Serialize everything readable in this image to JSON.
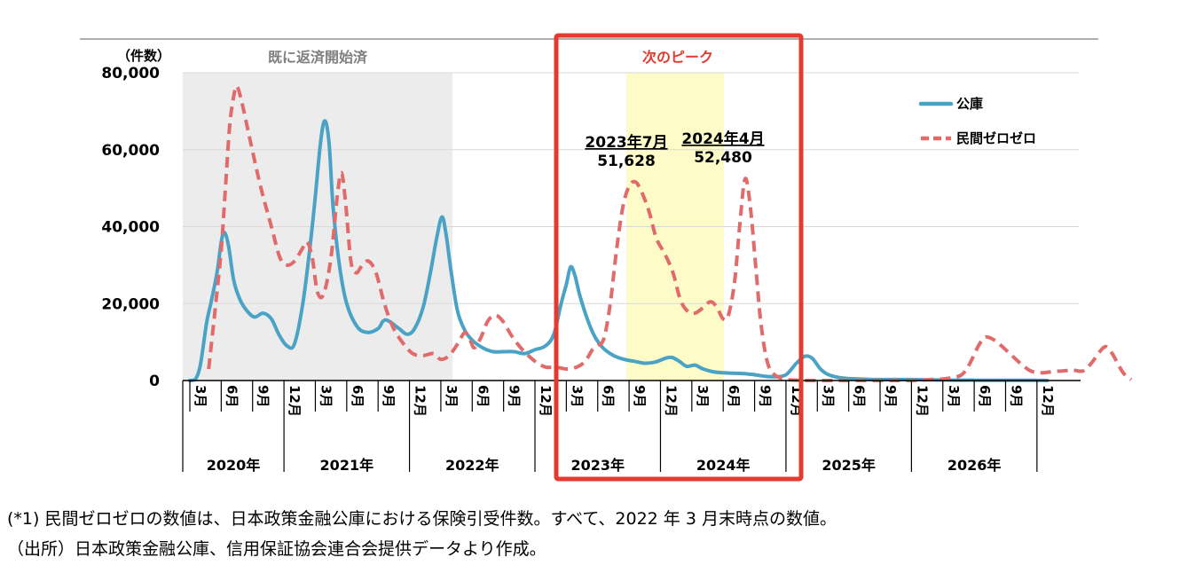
{
  "chart_data": {
    "type": "line",
    "y_unit_label": "（件数）",
    "ylim": [
      0,
      80000
    ],
    "y_ticks": [
      "0",
      "20,000",
      "40,000",
      "60,000",
      "80,000"
    ],
    "month_ticks": [
      "3月",
      "6月",
      "9月",
      "12月",
      "3月",
      "6月",
      "9月",
      "12月",
      "3月",
      "6月",
      "9月",
      "12月",
      "3月",
      "6月",
      "9月",
      "12月",
      "3月",
      "6月",
      "9月",
      "12月",
      "3月",
      "6月",
      "9月",
      "12月",
      "3月",
      "6月",
      "9月",
      "12月"
    ],
    "years": [
      "2020年",
      "2021年",
      "2022年",
      "2023年",
      "2024年",
      "2025年",
      "2026年"
    ],
    "legend_position": "top-right",
    "series": [
      {
        "name": "公庫",
        "color": "#4aa3c4",
        "style": "solid",
        "points": [
          [
            0,
            0
          ],
          [
            0.5,
            200
          ],
          [
            1,
            4000
          ],
          [
            1.6,
            15000
          ],
          [
            2,
            20000
          ],
          [
            2.6,
            28000
          ],
          [
            3,
            36000
          ],
          [
            3.3,
            38500
          ],
          [
            3.7,
            35000
          ],
          [
            4.2,
            26000
          ],
          [
            4.8,
            21000
          ],
          [
            5.5,
            18000
          ],
          [
            6.2,
            16500
          ],
          [
            7,
            17500
          ],
          [
            7.8,
            16000
          ],
          [
            8.5,
            12000
          ],
          [
            9.3,
            9000
          ],
          [
            10,
            9500
          ],
          [
            10.8,
            20000
          ],
          [
            11.5,
            35000
          ],
          [
            12,
            48000
          ],
          [
            12.5,
            62000
          ],
          [
            12.9,
            67500
          ],
          [
            13.3,
            62000
          ],
          [
            13.7,
            45000
          ],
          [
            14.3,
            30000
          ],
          [
            15,
            20000
          ],
          [
            16,
            14000
          ],
          [
            17,
            12500
          ],
          [
            18,
            13500
          ],
          [
            18.5,
            15500
          ],
          [
            19,
            15500
          ],
          [
            20,
            13500
          ],
          [
            20.8,
            12000
          ],
          [
            21.5,
            13500
          ],
          [
            22.3,
            19000
          ],
          [
            23,
            28000
          ],
          [
            23.6,
            37000
          ],
          [
            24.1,
            42500
          ],
          [
            24.5,
            38000
          ],
          [
            25,
            28000
          ],
          [
            25.6,
            18000
          ],
          [
            26.3,
            13000
          ],
          [
            27,
            10500
          ],
          [
            28,
            8500
          ],
          [
            29,
            7500
          ],
          [
            30,
            7500
          ],
          [
            31,
            7500
          ],
          [
            32,
            7000
          ],
          [
            33,
            8000
          ],
          [
            34,
            9000
          ],
          [
            34.8,
            12000
          ],
          [
            35.5,
            20000
          ],
          [
            36,
            25000
          ],
          [
            36.4,
            29500
          ],
          [
            36.8,
            27500
          ],
          [
            37.3,
            22000
          ],
          [
            38,
            16000
          ],
          [
            38.7,
            11500
          ],
          [
            39.5,
            8500
          ],
          [
            40.5,
            6500
          ],
          [
            41.5,
            5500
          ],
          [
            42.5,
            5000
          ],
          [
            43.5,
            4500
          ],
          [
            44.5,
            4800
          ],
          [
            45.5,
            5800
          ],
          [
            46.1,
            6000
          ],
          [
            46.8,
            5000
          ],
          [
            47.5,
            3700
          ],
          [
            48.3,
            4000
          ],
          [
            49,
            3100
          ],
          [
            50,
            2300
          ],
          [
            51,
            2000
          ],
          [
            52,
            1900
          ],
          [
            53,
            1800
          ],
          [
            54,
            1500
          ],
          [
            55,
            1100
          ],
          [
            56,
            1000
          ],
          [
            57,
            1500
          ],
          [
            58,
            4500
          ],
          [
            58.8,
            6300
          ],
          [
            59.5,
            5800
          ],
          [
            60.3,
            3000
          ],
          [
            61,
            1600
          ],
          [
            62,
            800
          ],
          [
            63,
            500
          ],
          [
            64,
            400
          ],
          [
            65,
            300
          ],
          [
            66,
            250
          ],
          [
            67,
            250
          ],
          [
            68,
            250
          ],
          [
            69,
            250
          ],
          [
            70,
            200
          ],
          [
            71,
            150
          ],
          [
            72,
            150
          ],
          [
            73,
            100
          ],
          [
            74,
            100
          ],
          [
            75,
            100
          ],
          [
            76,
            50
          ],
          [
            77,
            50
          ],
          [
            78,
            50
          ],
          [
            79,
            50
          ],
          [
            80,
            50
          ],
          [
            81,
            50
          ],
          [
            82,
            0
          ]
        ]
      },
      {
        "name": "民間ゼロゼロ",
        "color": "#e16b6b",
        "style": "dashed",
        "points": [
          [
            1.8,
            3000
          ],
          [
            2.4,
            18000
          ],
          [
            3,
            34000
          ],
          [
            3.4,
            50000
          ],
          [
            3.8,
            66000
          ],
          [
            4.2,
            74000
          ],
          [
            4.5,
            76500
          ],
          [
            5,
            72000
          ],
          [
            5.8,
            62000
          ],
          [
            6.8,
            50000
          ],
          [
            7.8,
            40000
          ],
          [
            8.6,
            32000
          ],
          [
            9.3,
            30000
          ],
          [
            10,
            31000
          ],
          [
            10.7,
            34000
          ],
          [
            11.2,
            36000
          ],
          [
            11.7,
            32000
          ],
          [
            12.2,
            23000
          ],
          [
            12.8,
            22500
          ],
          [
            13.5,
            32000
          ],
          [
            14.1,
            48000
          ],
          [
            14.5,
            54000
          ],
          [
            14.9,
            46000
          ],
          [
            15.4,
            31000
          ],
          [
            15.9,
            28000
          ],
          [
            16.5,
            30000
          ],
          [
            17.1,
            31000
          ],
          [
            17.8,
            28000
          ],
          [
            18.6,
            20000
          ],
          [
            19.4,
            14000
          ],
          [
            20.3,
            10000
          ],
          [
            21.3,
            7000
          ],
          [
            22.3,
            6500
          ],
          [
            23.3,
            7000
          ],
          [
            24,
            5500
          ],
          [
            24.8,
            6500
          ],
          [
            25.6,
            9500
          ],
          [
            26.3,
            12500
          ],
          [
            26.8,
            10500
          ],
          [
            27.2,
            8500
          ],
          [
            27.8,
            11000
          ],
          [
            28.5,
            15500
          ],
          [
            29.2,
            17000
          ],
          [
            29.9,
            15500
          ],
          [
            30.8,
            11500
          ],
          [
            31.8,
            8000
          ],
          [
            33,
            5000
          ],
          [
            34,
            3500
          ],
          [
            35,
            3500
          ],
          [
            36,
            3000
          ],
          [
            37,
            3500
          ],
          [
            37.8,
            5000
          ],
          [
            38.5,
            8000
          ],
          [
            39,
            9000
          ],
          [
            39.6,
            11000
          ],
          [
            40.2,
            20000
          ],
          [
            40.8,
            34000
          ],
          [
            41.4,
            45000
          ],
          [
            42,
            50500
          ],
          [
            42.6,
            51628
          ],
          [
            43.2,
            49000
          ],
          [
            43.9,
            44000
          ],
          [
            44.6,
            37000
          ],
          [
            45.4,
            33000
          ],
          [
            46.2,
            28000
          ],
          [
            46.9,
            21000
          ],
          [
            47.6,
            18000
          ],
          [
            48.3,
            17500
          ],
          [
            49.1,
            19000
          ],
          [
            49.8,
            20500
          ],
          [
            50.4,
            19000
          ],
          [
            51,
            16000
          ],
          [
            51.5,
            17000
          ],
          [
            52.1,
            26000
          ],
          [
            52.6,
            41000
          ],
          [
            53.1,
            52480
          ],
          [
            53.6,
            45000
          ],
          [
            54.1,
            30000
          ],
          [
            54.6,
            15000
          ],
          [
            55.2,
            5000
          ],
          [
            55.9,
            1500
          ],
          [
            57,
            300
          ],
          [
            58,
            100
          ],
          [
            59,
            0
          ],
          [
            60,
            0
          ],
          [
            61,
            0
          ],
          [
            62,
            0
          ],
          [
            63,
            0
          ],
          [
            64,
            0
          ],
          [
            65,
            0
          ],
          [
            66,
            0
          ],
          [
            67,
            0
          ],
          [
            68,
            0
          ],
          [
            69,
            0
          ],
          [
            70,
            100
          ],
          [
            71,
            300
          ],
          [
            72,
            400
          ],
          [
            73,
            800
          ],
          [
            73.8,
            1500
          ],
          [
            74.5,
            4000
          ],
          [
            75.4,
            9000
          ],
          [
            76,
            11200
          ],
          [
            76.6,
            11000
          ],
          [
            77.4,
            9500
          ],
          [
            78.4,
            7000
          ],
          [
            79.4,
            4500
          ],
          [
            80.4,
            2500
          ],
          [
            81.4,
            2000
          ],
          [
            82.4,
            2300
          ],
          [
            83.4,
            2500
          ],
          [
            84.4,
            2700
          ],
          [
            85.4,
            2500
          ],
          [
            86.2,
            4500
          ],
          [
            87,
            7500
          ],
          [
            87.6,
            8800
          ],
          [
            88.2,
            7000
          ],
          [
            88.9,
            3500
          ],
          [
            89.4,
            1500
          ],
          [
            90,
            200
          ]
        ]
      }
    ],
    "shaded_region_label": "既に返済開始済",
    "highlight_box_label": "次のピーク",
    "annotations": [
      {
        "date": "2023年7月",
        "value": "51,628"
      },
      {
        "date": "2024年4月",
        "value": "52,480"
      }
    ]
  },
  "footnotes": [
    "(*1) 民間ゼロゼロの数値は、日本政策金融公庫における保険引受件数。すべて、2022 年 3 月末時点の数値。",
    "（出所）日本政策金融公庫、信用保証協会連合会提供データより作成。"
  ],
  "colors": {
    "gray_shade": "#ececec",
    "yellow_shade": "#fdfcc8",
    "highlight_box": "#e53a2f",
    "gray_text": "#7f7f7f",
    "red_text": "#e23a2f"
  }
}
